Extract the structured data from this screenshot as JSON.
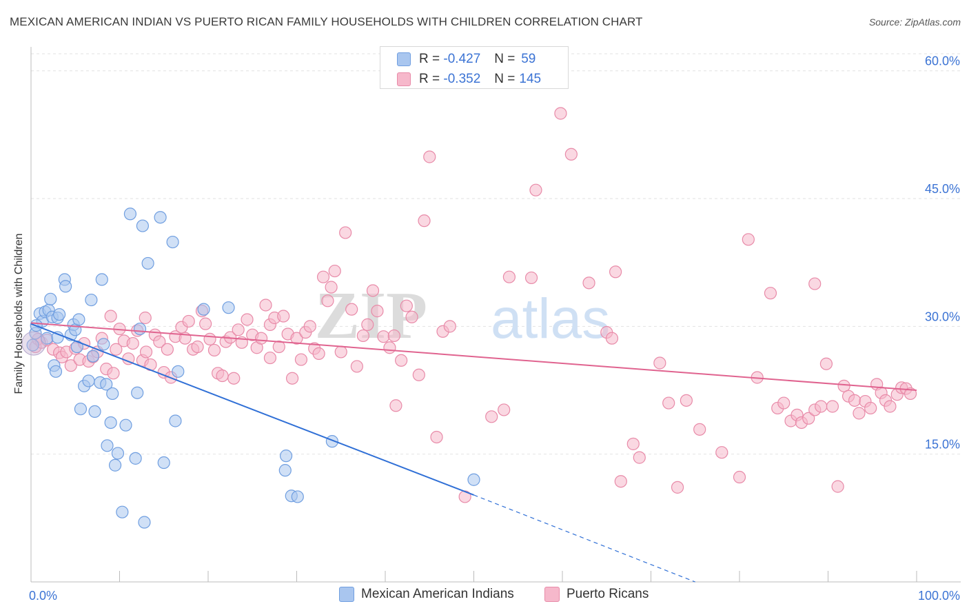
{
  "title": "MEXICAN AMERICAN INDIAN VS PUERTO RICAN FAMILY HOUSEHOLDS WITH CHILDREN CORRELATION CHART",
  "source": "Source: ZipAtlas.com",
  "watermark": {
    "part1": "ZIP",
    "part2": "atlas"
  },
  "legend": {
    "rows": [
      {
        "r_label": "R =",
        "r_value": "-0.427",
        "n_label": "N =",
        "n_value": "59",
        "color": "#a9c6ef",
        "border": "#6f9ee0"
      },
      {
        "r_label": "R =",
        "r_value": "-0.352",
        "n_label": "N =",
        "n_value": "145",
        "color": "#f6b8cb",
        "border": "#e88aa8"
      }
    ]
  },
  "bottom_legend": [
    {
      "label": "Mexican American Indians",
      "color": "#a9c6ef",
      "border": "#6f9ee0"
    },
    {
      "label": "Puerto Ricans",
      "color": "#f6b8cb",
      "border": "#e88aa8"
    }
  ],
  "chart_data": {
    "type": "scatter",
    "title": "MEXICAN AMERICAN INDIAN VS PUERTO RICAN FAMILY HOUSEHOLDS WITH CHILDREN CORRELATION CHART",
    "xlabel": "",
    "ylabel": "Family Households with Children",
    "xlim": [
      0,
      100
    ],
    "ylim": [
      0,
      62
    ],
    "x_tick_labels": [
      {
        "value": 0,
        "label": "0.0%"
      },
      {
        "value": 100,
        "label": "100.0%"
      }
    ],
    "y_tick_labels": [
      {
        "value": 15,
        "label": "15.0%"
      },
      {
        "value": 30,
        "label": "30.0%"
      },
      {
        "value": 45,
        "label": "45.0%"
      },
      {
        "value": 60,
        "label": "60.0%"
      }
    ],
    "series": [
      {
        "name": "Mexican American Indians",
        "color": "#a9c6ef",
        "stroke": "#6f9ee0",
        "line_color": "#2f6fd6",
        "trend": {
          "x0": 0,
          "y0": 30.3,
          "x1": 50,
          "y1": 10.2,
          "dash_to_x": 75,
          "dash_to_y": 0
        },
        "points": [
          [
            0.2,
            27.8
          ],
          [
            0.5,
            29.2
          ],
          [
            1.0,
            31.5
          ],
          [
            1.3,
            30.6
          ],
          [
            1.6,
            31.7
          ],
          [
            1.8,
            28.6
          ],
          [
            2.0,
            31.9
          ],
          [
            2.2,
            33.2
          ],
          [
            2.4,
            31.1
          ],
          [
            2.6,
            25.4
          ],
          [
            2.8,
            24.7
          ],
          [
            3.0,
            31.0
          ],
          [
            3.2,
            31.4
          ],
          [
            3.0,
            28.7
          ],
          [
            3.8,
            35.5
          ],
          [
            3.9,
            34.7
          ],
          [
            4.5,
            29.0
          ],
          [
            4.8,
            30.2
          ],
          [
            5.0,
            29.6
          ],
          [
            5.2,
            27.6
          ],
          [
            5.4,
            30.8
          ],
          [
            5.6,
            20.3
          ],
          [
            6.0,
            23.0
          ],
          [
            6.5,
            23.6
          ],
          [
            6.8,
            33.1
          ],
          [
            7.0,
            26.5
          ],
          [
            7.2,
            20.0
          ],
          [
            7.8,
            23.4
          ],
          [
            8.0,
            35.5
          ],
          [
            8.5,
            23.2
          ],
          [
            8.6,
            16.0
          ],
          [
            9.0,
            18.7
          ],
          [
            9.2,
            22.1
          ],
          [
            9.5,
            13.7
          ],
          [
            9.8,
            15.1
          ],
          [
            10.3,
            8.2
          ],
          [
            10.7,
            18.4
          ],
          [
            11.2,
            43.2
          ],
          [
            11.8,
            14.5
          ],
          [
            12.0,
            22.2
          ],
          [
            12.3,
            29.7
          ],
          [
            12.6,
            41.8
          ],
          [
            12.8,
            7.0
          ],
          [
            13.2,
            37.4
          ],
          [
            14.6,
            42.8
          ],
          [
            15.0,
            14.0
          ],
          [
            16.0,
            39.9
          ],
          [
            16.3,
            18.9
          ],
          [
            16.6,
            24.7
          ],
          [
            19.5,
            32.0
          ],
          [
            22.3,
            32.2
          ],
          [
            28.7,
            13.1
          ],
          [
            28.8,
            14.8
          ],
          [
            29.4,
            10.1
          ],
          [
            30.1,
            10.0
          ],
          [
            34.0,
            16.5
          ],
          [
            50.0,
            12.0
          ],
          [
            0.6,
            30.1
          ],
          [
            8.2,
            27.9
          ]
        ]
      },
      {
        "name": "Puerto Ricans",
        "color": "#f6b8cb",
        "stroke": "#e88aa8",
        "line_color": "#e0638f",
        "trend": {
          "x0": 0,
          "y0": 30.4,
          "x1": 100,
          "y1": 22.5
        },
        "points": [
          [
            0.5,
            27.6
          ],
          [
            0.8,
            28.5
          ],
          [
            1.2,
            28.1
          ],
          [
            1.8,
            28.4
          ],
          [
            2.5,
            27.3
          ],
          [
            3.2,
            26.9
          ],
          [
            3.5,
            26.4
          ],
          [
            4.0,
            27.0
          ],
          [
            4.5,
            25.4
          ],
          [
            5.0,
            27.4
          ],
          [
            5.5,
            26.1
          ],
          [
            6.0,
            28.0
          ],
          [
            6.5,
            25.9
          ],
          [
            7.0,
            26.4
          ],
          [
            7.5,
            27.0
          ],
          [
            8.0,
            28.6
          ],
          [
            8.5,
            25.0
          ],
          [
            9.0,
            31.2
          ],
          [
            9.3,
            24.5
          ],
          [
            9.6,
            27.3
          ],
          [
            10.0,
            29.7
          ],
          [
            10.5,
            28.3
          ],
          [
            11.0,
            26.2
          ],
          [
            11.5,
            28.0
          ],
          [
            12.0,
            29.5
          ],
          [
            12.6,
            26.0
          ],
          [
            13.0,
            27.0
          ],
          [
            13.5,
            25.5
          ],
          [
            14.0,
            29.0
          ],
          [
            14.5,
            28.2
          ],
          [
            15.0,
            24.6
          ],
          [
            15.4,
            27.3
          ],
          [
            15.8,
            24.0
          ],
          [
            16.3,
            28.8
          ],
          [
            17.0,
            29.9
          ],
          [
            17.4,
            28.6
          ],
          [
            17.8,
            30.6
          ],
          [
            18.3,
            27.3
          ],
          [
            18.8,
            27.6
          ],
          [
            19.3,
            31.8
          ],
          [
            19.7,
            30.3
          ],
          [
            20.2,
            28.5
          ],
          [
            20.7,
            27.2
          ],
          [
            21.1,
            24.5
          ],
          [
            21.6,
            24.2
          ],
          [
            22.0,
            28.2
          ],
          [
            22.5,
            28.7
          ],
          [
            22.9,
            23.9
          ],
          [
            23.4,
            29.6
          ],
          [
            23.8,
            28.1
          ],
          [
            24.4,
            30.8
          ],
          [
            25.0,
            29.0
          ],
          [
            25.5,
            27.5
          ],
          [
            26.0,
            28.6
          ],
          [
            26.5,
            32.5
          ],
          [
            27.0,
            30.2
          ],
          [
            27.5,
            31.0
          ],
          [
            28.0,
            27.6
          ],
          [
            28.5,
            31.2
          ],
          [
            29.0,
            29.1
          ],
          [
            29.5,
            23.9
          ],
          [
            30.0,
            28.6
          ],
          [
            30.5,
            26.1
          ],
          [
            31.0,
            29.3
          ],
          [
            31.5,
            30.0
          ],
          [
            32.0,
            27.4
          ],
          [
            32.5,
            26.8
          ],
          [
            33.0,
            35.8
          ],
          [
            33.5,
            33.0
          ],
          [
            33.9,
            34.6
          ],
          [
            34.3,
            36.5
          ],
          [
            35.0,
            27.0
          ],
          [
            35.5,
            41.0
          ],
          [
            36.2,
            32.0
          ],
          [
            36.8,
            25.3
          ],
          [
            37.5,
            28.9
          ],
          [
            38.0,
            30.2
          ],
          [
            38.6,
            34.2
          ],
          [
            39.1,
            31.8
          ],
          [
            39.8,
            28.8
          ],
          [
            40.5,
            27.5
          ],
          [
            41.2,
            20.7
          ],
          [
            41.8,
            26.0
          ],
          [
            42.4,
            32.4
          ],
          [
            43.0,
            31.1
          ],
          [
            43.8,
            24.3
          ],
          [
            44.4,
            42.4
          ],
          [
            45.0,
            49.9
          ],
          [
            45.8,
            17.0
          ],
          [
            46.5,
            29.4
          ],
          [
            47.3,
            30.0
          ],
          [
            49.0,
            10.0
          ],
          [
            52.0,
            19.4
          ],
          [
            53.4,
            20.2
          ],
          [
            54.0,
            35.8
          ],
          [
            57.0,
            46.0
          ],
          [
            59.8,
            55.0
          ],
          [
            61.0,
            50.2
          ],
          [
            65.0,
            29.3
          ],
          [
            65.6,
            28.6
          ],
          [
            66.0,
            36.4
          ],
          [
            66.6,
            11.8
          ],
          [
            68.0,
            16.2
          ],
          [
            68.7,
            14.6
          ],
          [
            71.0,
            25.7
          ],
          [
            72.0,
            21.0
          ],
          [
            73.0,
            11.1
          ],
          [
            74.0,
            21.3
          ],
          [
            75.5,
            17.9
          ],
          [
            78.0,
            15.2
          ],
          [
            80.0,
            12.3
          ],
          [
            81.0,
            40.2
          ],
          [
            82.0,
            24.0
          ],
          [
            83.5,
            33.9
          ],
          [
            84.3,
            20.4
          ],
          [
            85.0,
            21.0
          ],
          [
            85.8,
            18.9
          ],
          [
            86.5,
            19.6
          ],
          [
            87.0,
            18.7
          ],
          [
            87.8,
            19.2
          ],
          [
            88.5,
            20.2
          ],
          [
            89.2,
            20.6
          ],
          [
            89.8,
            25.6
          ],
          [
            90.5,
            20.6
          ],
          [
            91.1,
            11.2
          ],
          [
            91.8,
            23.0
          ],
          [
            92.3,
            21.8
          ],
          [
            93.0,
            21.3
          ],
          [
            93.5,
            19.8
          ],
          [
            94.2,
            21.2
          ],
          [
            94.8,
            20.4
          ],
          [
            95.5,
            23.2
          ],
          [
            96.0,
            22.2
          ],
          [
            96.5,
            21.3
          ],
          [
            97.0,
            20.6
          ],
          [
            97.8,
            22.0
          ],
          [
            98.3,
            22.8
          ],
          [
            98.8,
            22.7
          ],
          [
            99.3,
            22.1
          ],
          [
            88.5,
            35.0
          ],
          [
            63.0,
            35.1
          ],
          [
            56.5,
            35.7
          ],
          [
            41.0,
            28.9
          ],
          [
            27.0,
            26.3
          ],
          [
            12.9,
            31.0
          ]
        ]
      }
    ]
  }
}
